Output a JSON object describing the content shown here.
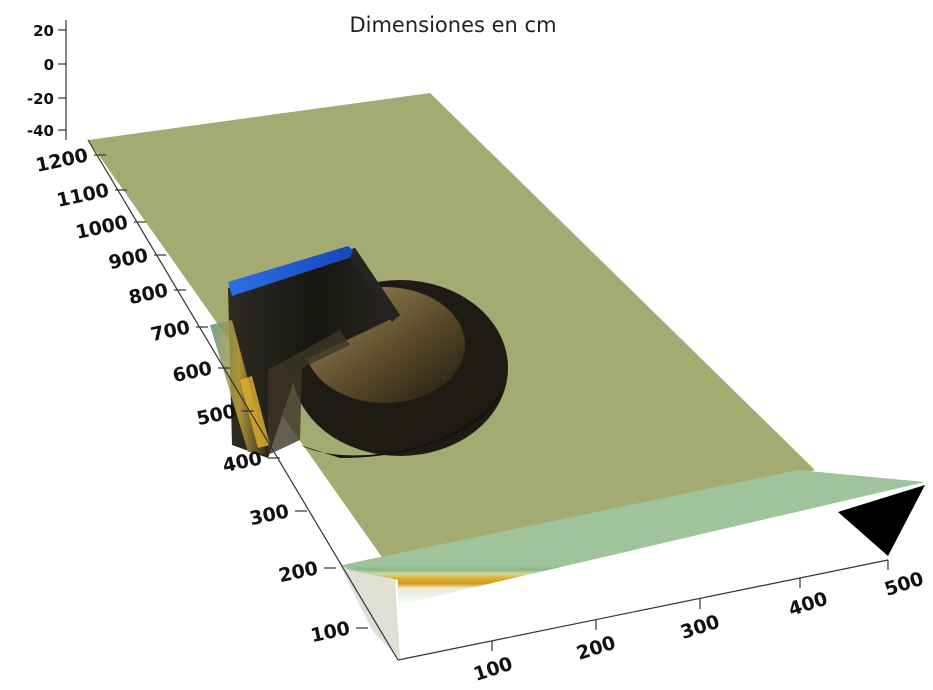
{
  "chart_data": {
    "type": "surface",
    "title": "Dimensiones en cm",
    "x_axis": {
      "ticks": [
        "100",
        "200",
        "300",
        "400",
        "500"
      ],
      "range": [
        0,
        500
      ]
    },
    "y_axis": {
      "ticks": [
        "100",
        "200",
        "300",
        "400",
        "500",
        "600",
        "700",
        "800",
        "900",
        "1000",
        "1100",
        "1200"
      ],
      "range": [
        0,
        1200
      ]
    },
    "z_axis": {
      "ticks": [
        "20",
        "0",
        "-20",
        "-40"
      ],
      "range": [
        -40,
        20
      ]
    },
    "colors": {
      "background": "#ffffff",
      "bed": "#a3ab72",
      "structure_top": "#1f57c9",
      "structure_body": "#1c1c18",
      "scour_bowl": "#8a7040",
      "wave_band_green": "#86b889",
      "wave_band_gold": "#e1ae25",
      "wave_band_white": "#eef2e8",
      "corner_wedge": "#000000"
    }
  }
}
